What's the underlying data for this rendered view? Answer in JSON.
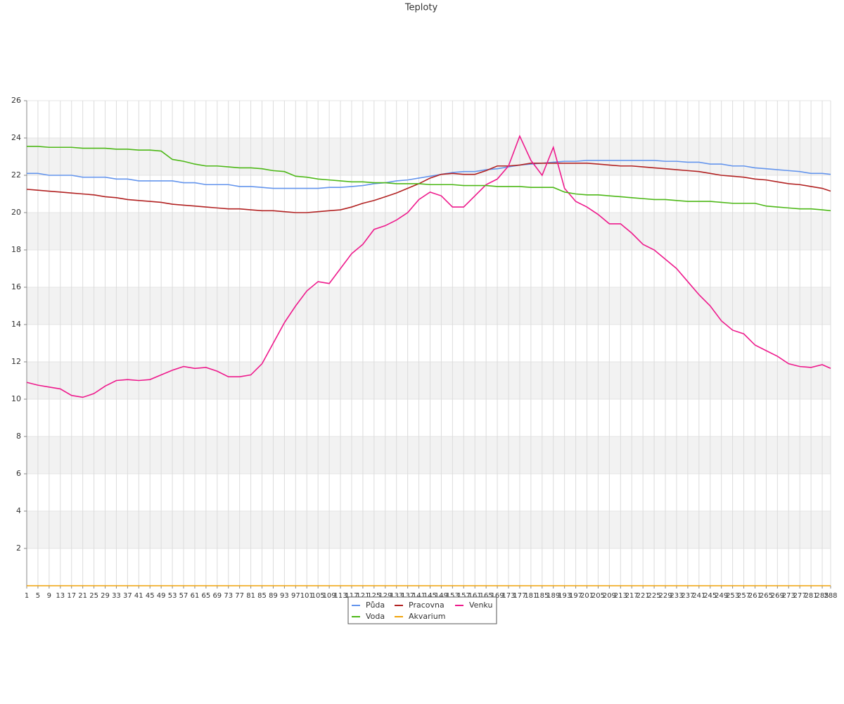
{
  "chart_data": {
    "type": "line",
    "title": "Teploty",
    "x": [
      1,
      5,
      9,
      13,
      17,
      21,
      25,
      29,
      33,
      37,
      41,
      45,
      49,
      53,
      57,
      61,
      65,
      69,
      73,
      77,
      81,
      85,
      89,
      93,
      97,
      101,
      105,
      109,
      113,
      117,
      121,
      125,
      129,
      133,
      137,
      141,
      145,
      149,
      153,
      157,
      161,
      165,
      169,
      173,
      177,
      181,
      185,
      189,
      193,
      197,
      201,
      205,
      209,
      213,
      217,
      221,
      225,
      229,
      233,
      237,
      241,
      245,
      249,
      253,
      257,
      261,
      265,
      269,
      273,
      277,
      281,
      285,
      288
    ],
    "xlim": [
      1,
      288
    ],
    "ylim": [
      0,
      26
    ],
    "yticks": [
      2,
      4,
      6,
      8,
      10,
      12,
      14,
      16,
      18,
      20,
      22,
      24,
      26
    ],
    "grid": true,
    "series": [
      {
        "name": "Půda",
        "color": "#6495ed",
        "values": [
          22.1,
          22.1,
          22.0,
          22.0,
          22.0,
          21.9,
          21.9,
          21.9,
          21.8,
          21.8,
          21.7,
          21.7,
          21.7,
          21.7,
          21.6,
          21.6,
          21.5,
          21.5,
          21.5,
          21.4,
          21.4,
          21.35,
          21.3,
          21.3,
          21.3,
          21.3,
          21.3,
          21.35,
          21.35,
          21.4,
          21.45,
          21.55,
          21.6,
          21.7,
          21.75,
          21.85,
          21.95,
          22.05,
          22.15,
          22.2,
          22.2,
          22.3,
          22.35,
          22.45,
          22.55,
          22.6,
          22.65,
          22.7,
          22.75,
          22.75,
          22.8,
          22.8,
          22.8,
          22.8,
          22.8,
          22.8,
          22.8,
          22.75,
          22.75,
          22.7,
          22.7,
          22.6,
          22.6,
          22.5,
          22.5,
          22.4,
          22.35,
          22.3,
          22.25,
          22.2,
          22.1,
          22.1,
          22.05
        ]
      },
      {
        "name": "Pracovna",
        "color": "#b22222",
        "values": [
          21.25,
          21.2,
          21.15,
          21.1,
          21.05,
          21.0,
          20.95,
          20.85,
          20.8,
          20.7,
          20.65,
          20.6,
          20.55,
          20.45,
          20.4,
          20.35,
          20.3,
          20.25,
          20.2,
          20.2,
          20.15,
          20.1,
          20.1,
          20.05,
          20.0,
          20.0,
          20.05,
          20.1,
          20.15,
          20.3,
          20.5,
          20.65,
          20.85,
          21.05,
          21.3,
          21.55,
          21.85,
          22.05,
          22.1,
          22.05,
          22.05,
          22.25,
          22.5,
          22.5,
          22.55,
          22.65,
          22.65,
          22.65,
          22.65,
          22.65,
          22.65,
          22.6,
          22.55,
          22.5,
          22.5,
          22.45,
          22.4,
          22.35,
          22.3,
          22.25,
          22.2,
          22.1,
          22.0,
          21.95,
          21.9,
          21.8,
          21.75,
          21.65,
          21.55,
          21.5,
          21.4,
          21.3,
          21.15
        ]
      },
      {
        "name": "Venku",
        "color": "#ee1a8c",
        "values": [
          10.9,
          10.75,
          10.65,
          10.55,
          10.2,
          10.1,
          10.3,
          10.7,
          11.0,
          11.05,
          11.0,
          11.05,
          11.3,
          11.55,
          11.75,
          11.65,
          11.7,
          11.5,
          11.2,
          11.2,
          11.3,
          11.9,
          13.0,
          14.1,
          15.0,
          15.8,
          16.3,
          16.2,
          17.0,
          17.8,
          18.3,
          19.1,
          19.3,
          19.6,
          20.0,
          20.7,
          21.1,
          20.9,
          20.3,
          20.3,
          20.9,
          21.5,
          21.8,
          22.5,
          24.1,
          22.8,
          22.0,
          23.5,
          21.3,
          20.6,
          20.3,
          19.9,
          19.4,
          19.4,
          18.9,
          18.3,
          18.0,
          17.5,
          17.0,
          16.3,
          15.6,
          15.0,
          14.2,
          13.7,
          13.5,
          12.9,
          12.6,
          12.3,
          11.9,
          11.75,
          11.7,
          11.85,
          11.65
        ]
      },
      {
        "name": "Voda",
        "color": "#4db817",
        "values": [
          23.55,
          23.55,
          23.5,
          23.5,
          23.5,
          23.45,
          23.45,
          23.45,
          23.4,
          23.4,
          23.35,
          23.35,
          23.3,
          22.85,
          22.75,
          22.6,
          22.5,
          22.5,
          22.45,
          22.4,
          22.4,
          22.35,
          22.25,
          22.2,
          21.95,
          21.9,
          21.8,
          21.75,
          21.7,
          21.65,
          21.65,
          21.6,
          21.6,
          21.55,
          21.55,
          21.55,
          21.5,
          21.5,
          21.5,
          21.45,
          21.45,
          21.45,
          21.4,
          21.4,
          21.4,
          21.35,
          21.35,
          21.35,
          21.1,
          21.0,
          20.95,
          20.95,
          20.9,
          20.85,
          20.8,
          20.75,
          20.7,
          20.7,
          20.65,
          20.6,
          20.6,
          20.6,
          20.55,
          20.5,
          20.5,
          20.5,
          20.35,
          20.3,
          20.25,
          20.2,
          20.2,
          20.15,
          20.1
        ]
      },
      {
        "name": "Akvarium",
        "color": "#f0a30a",
        "values": [
          0,
          0,
          0,
          0,
          0,
          0,
          0,
          0,
          0,
          0,
          0,
          0,
          0,
          0,
          0,
          0,
          0,
          0,
          0,
          0,
          0,
          0,
          0,
          0,
          0,
          0,
          0,
          0,
          0,
          0,
          0,
          0,
          0,
          0,
          0,
          0,
          0,
          0,
          0,
          0,
          0,
          0,
          0,
          0,
          0,
          0,
          0,
          0,
          0,
          0,
          0,
          0,
          0,
          0,
          0,
          0,
          0,
          0,
          0,
          0,
          0,
          0,
          0,
          0,
          0,
          0,
          0,
          0,
          0,
          0,
          0,
          0,
          0
        ]
      }
    ]
  }
}
